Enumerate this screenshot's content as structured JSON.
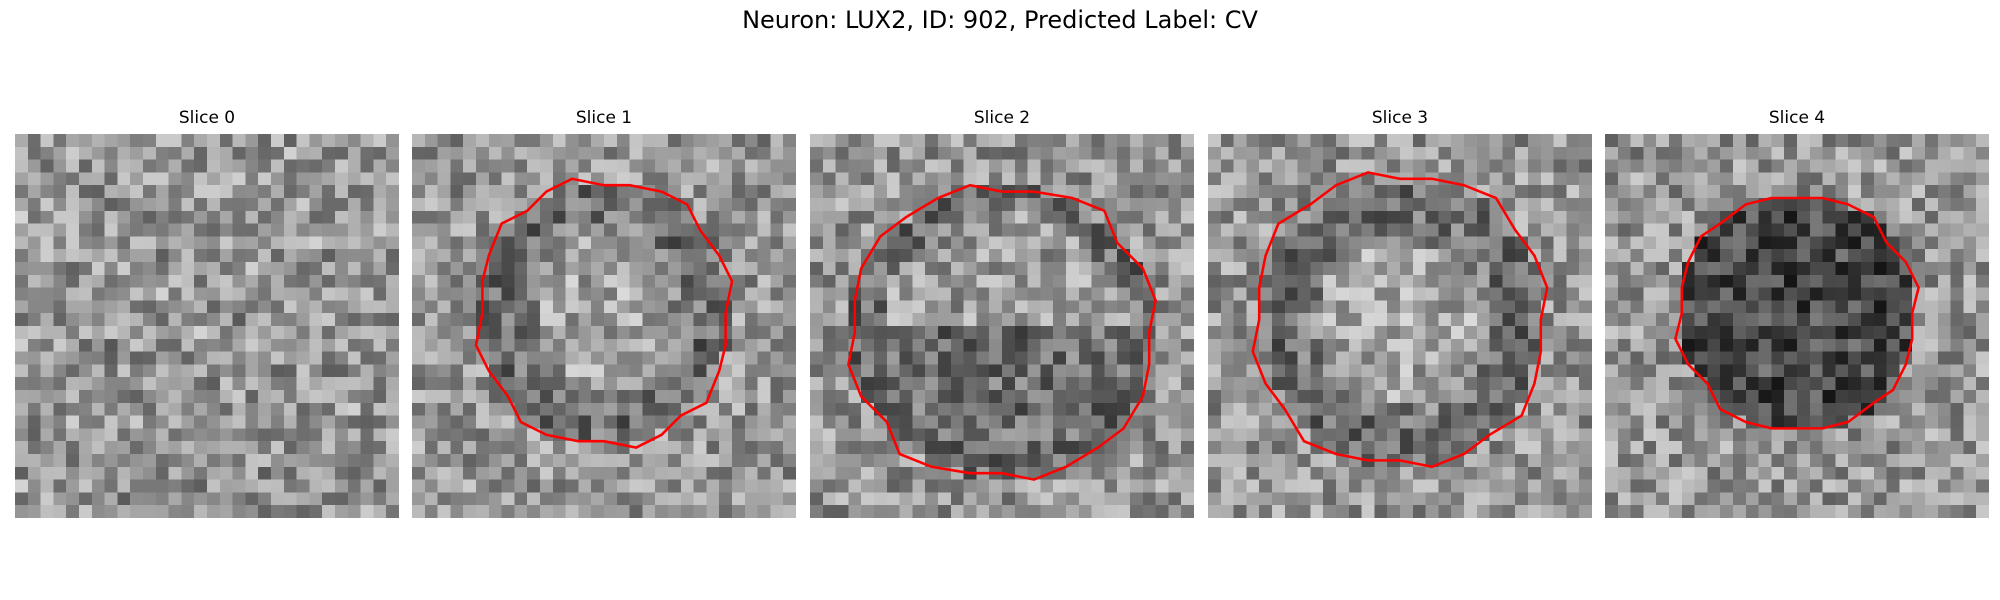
{
  "figure": {
    "title": "Neuron: LUX2, ID: 902, Predicted Label: CV",
    "outline_color": "#ff0000",
    "colormap": "gray",
    "panels": [
      {
        "title": "Slice 0",
        "dark_blob": "none",
        "has_outline": false
      },
      {
        "title": "Slice 1",
        "dark_blob": "ring",
        "has_outline": true
      },
      {
        "title": "Slice 2",
        "dark_blob": "lower-half",
        "has_outline": true
      },
      {
        "title": "Slice 3",
        "dark_blob": "ring",
        "has_outline": true
      },
      {
        "title": "Slice 4",
        "dark_blob": "filled",
        "has_outline": true
      }
    ]
  }
}
